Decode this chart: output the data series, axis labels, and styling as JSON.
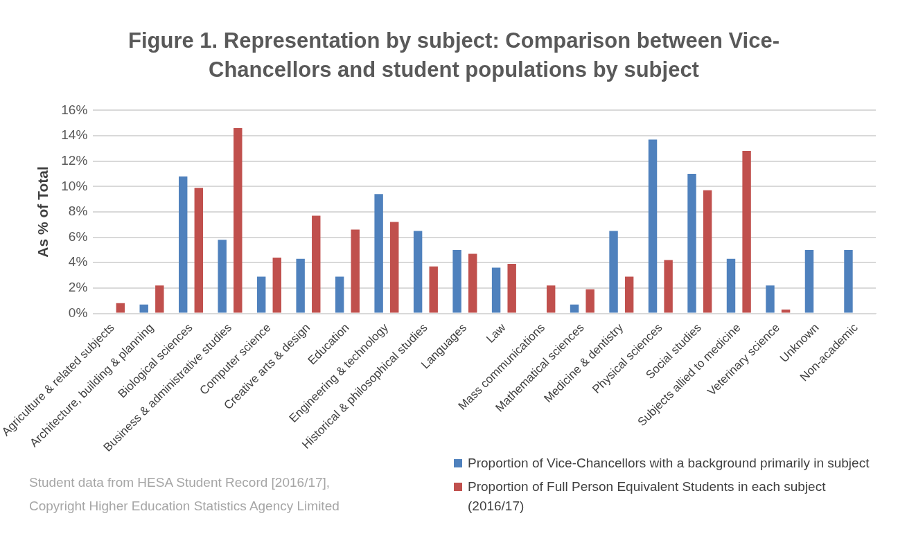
{
  "chart_data": {
    "type": "bar",
    "title": "Figure 1. Representation by subject: Comparison between Vice-Chancellors and student populations by subject",
    "ylabel": "As % of Total",
    "categories": [
      "Agriculture & related subjects",
      "Architecture, building & planning",
      "Biological sciences",
      "Business & administrative studies",
      "Computer science",
      "Creative arts & design",
      "Education",
      "Engineering & technology",
      "Historical & philosophical studies",
      "Languages",
      "Law",
      "Mass communications",
      "Mathematical sciences",
      "Medicine & dentistry",
      "Physical sciences",
      "Social studies",
      "Subjects allied to medicine",
      "Veterinary science",
      "Unknown",
      "Non-academic"
    ],
    "series": [
      {
        "name": "Proportion of Vice-Chancellors with a background primarily in subject",
        "color": "#4f81bd",
        "values": [
          0,
          0.7,
          10.8,
          5.8,
          2.9,
          4.3,
          2.9,
          9.4,
          6.5,
          5.0,
          3.6,
          0,
          0.7,
          6.5,
          13.7,
          11.0,
          4.3,
          2.2,
          5.0,
          5.0
        ]
      },
      {
        "name": "Proportion of Full Person Equivalent Students in each subject (2016/17)",
        "color": "#c0504d",
        "values": [
          0.8,
          2.2,
          9.9,
          14.6,
          4.4,
          7.7,
          6.6,
          7.2,
          3.7,
          4.7,
          3.9,
          2.2,
          1.9,
          2.9,
          4.2,
          9.7,
          12.8,
          0.3,
          0,
          0
        ]
      }
    ],
    "ylim": [
      0,
      16
    ],
    "yticks": [
      {
        "value": 0,
        "label": "0%"
      },
      {
        "value": 2,
        "label": "2%"
      },
      {
        "value": 4,
        "label": "4%"
      },
      {
        "value": 6,
        "label": "6%"
      },
      {
        "value": 8,
        "label": "8%"
      },
      {
        "value": 10,
        "label": "10%"
      },
      {
        "value": 12,
        "label": "12%"
      },
      {
        "value": 14,
        "label": "14%"
      },
      {
        "value": 16,
        "label": "16%"
      }
    ],
    "grid": "y",
    "legend": "bottom right",
    "annotations": [
      "Student data from HESA Student Record [2016/17], Copyright Higher Education Statistics Agency Limited"
    ]
  }
}
